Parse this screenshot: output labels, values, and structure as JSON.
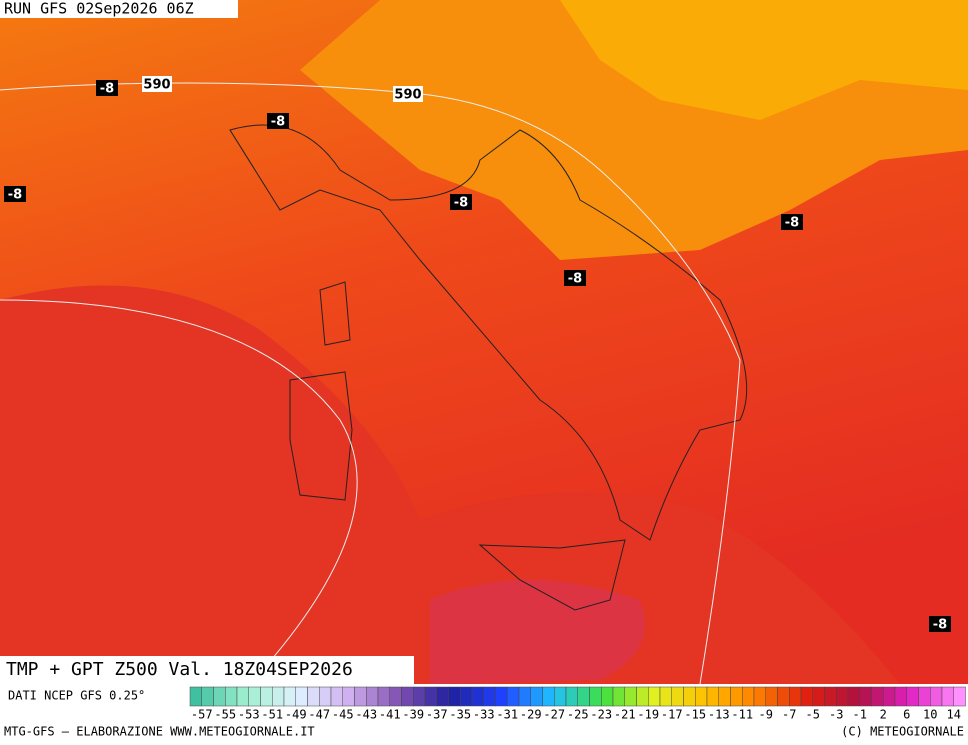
{
  "header": {
    "run": "RUN GFS 02Sep2026 06Z"
  },
  "contour_labels": [
    "-8",
    "-8",
    "-8",
    "-8",
    "-8",
    "-8",
    "-8",
    "590",
    "590"
  ],
  "map_title": "TMP + GPT Z500 Val. 18Z04SEP2026",
  "source": "DATI NCEP GFS 0.25°",
  "colorbar": {
    "labels": [
      -57,
      -55,
      -53,
      -51,
      -49,
      -47,
      -45,
      -43,
      -41,
      -39,
      -37,
      -35,
      -33,
      -31,
      -29,
      -27,
      -25,
      -23,
      -21,
      -19,
      -17,
      -15,
      -13,
      -11,
      -9,
      -7,
      -5,
      -3,
      -1,
      2,
      6,
      10,
      14
    ]
  },
  "footer": {
    "left": "MTG-GFS – ELABORAZIONE WWW.METEOGIORNALE.IT",
    "right": "(C) METEOGIORNALE"
  }
}
